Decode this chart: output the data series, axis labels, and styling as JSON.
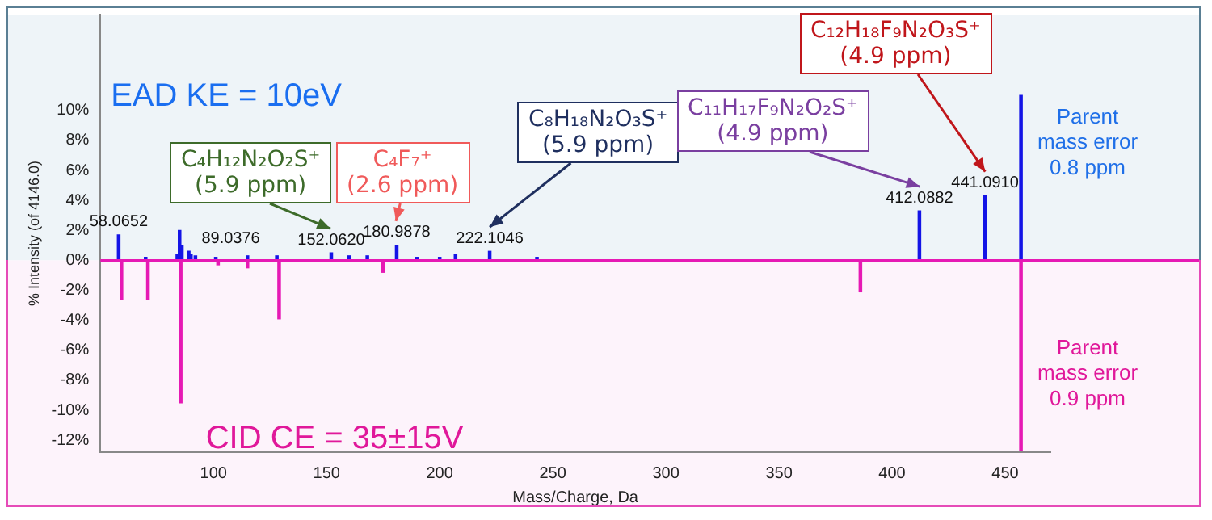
{
  "chart_data": {
    "type": "bar",
    "xlabel": "Mass/Charge, Da",
    "ylabel": "% Intensity (of 4146.0)",
    "xlim": [
      50,
      470
    ],
    "xticks": [
      100,
      150,
      200,
      250,
      300,
      350,
      400,
      450
    ],
    "ylim": [
      -12.8,
      16.4
    ],
    "yticks": [
      {
        "value": -12,
        "label": "-12%"
      },
      {
        "value": -10,
        "label": "-10%"
      },
      {
        "value": -8,
        "label": "-8%"
      },
      {
        "value": -6,
        "label": "-6%"
      },
      {
        "value": -4,
        "label": "-4%"
      },
      {
        "value": -2,
        "label": "-2%"
      },
      {
        "value": 0,
        "label": "0%"
      },
      {
        "value": 2,
        "label": "2%"
      },
      {
        "value": 4,
        "label": "4%"
      },
      {
        "value": 6,
        "label": "6%"
      },
      {
        "value": 8,
        "label": "8%"
      },
      {
        "value": 10,
        "label": "10%"
      }
    ],
    "series": [
      {
        "color": "#1414e6",
        "x": [
          58.0652,
          70,
          84,
          85,
          86,
          89.0376,
          90,
          92,
          101,
          115,
          128,
          152.062,
          160,
          168,
          180.9878,
          190,
          200,
          207,
          222.1046,
          243,
          412.0882,
          441.091,
          457
        ],
        "values": [
          1.7,
          0.2,
          0.4,
          2.0,
          1.0,
          0.6,
          0.4,
          0.3,
          0.2,
          0.3,
          0.3,
          0.5,
          0.3,
          0.3,
          1.0,
          0.2,
          0.2,
          0.4,
          0.6,
          0.2,
          3.3,
          4.3,
          11.0
        ]
      },
      {
        "color": "#e619b4",
        "x": [
          59.3,
          71,
          85.5,
          102,
          115,
          129,
          175,
          386,
          457
        ],
        "values": [
          -2.6,
          -2.6,
          -9.5,
          -0.3,
          -0.5,
          -3.9,
          -0.8,
          -2.1,
          -12.7
        ]
      }
    ],
    "ref_lines": [
      {
        "axis": "y",
        "value": 0,
        "color": "#e619b4"
      }
    ],
    "bands": [
      {
        "axis": "y",
        "from": 0,
        "to": 16.4,
        "color": "#eef4f8"
      },
      {
        "axis": "y",
        "from": -12.8,
        "to": 0,
        "color": "#fdf3fb"
      }
    ],
    "annotations": [
      "EAD KE = 10eV",
      "CID CE = 35±15V",
      "Parent\nmass error\n0.8 ppm",
      "Parent\nmass error\n0.9 ppm",
      {
        "text": "58.0652",
        "x": 58.0652,
        "y": 1.7
      },
      {
        "text": "89.0376",
        "x": 89.0376,
        "y": 0.6
      },
      {
        "text": "152.0620",
        "x": 152.062,
        "y": 0.5
      },
      {
        "text": "180.9878",
        "x": 180.9878,
        "y": 1.0
      },
      {
        "text": "222.1046",
        "x": 222.1046,
        "y": 0.6
      },
      {
        "text": "412.0882",
        "x": 412.0882,
        "y": 3.3
      },
      {
        "text": "441.0910",
        "x": 441.091,
        "y": 4.3
      },
      "C₄H₁₂N₂O₂S⁺\n(5.9 ppm)",
      "C₄F₇⁺\n(2.6 ppm)",
      "C₈H₁₈N₂O₃S⁺\n(5.9 ppm)",
      "C₁₁H₁₇F₉N₂O₂S⁺\n(4.9 ppm)",
      "C₁₂H₁₈F₉N₂O₃S⁺\n(4.9 ppm)"
    ]
  }
}
